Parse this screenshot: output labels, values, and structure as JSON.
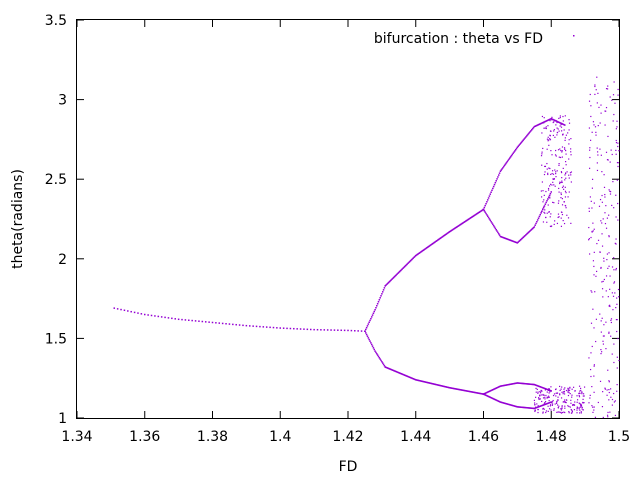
{
  "chart_data": {
    "type": "scatter",
    "title": "",
    "xlabel": "FD",
    "ylabel": "theta(radians)",
    "xlim": [
      1.34,
      1.5
    ],
    "ylim": [
      1,
      3.5
    ],
    "x_ticks": [
      1.34,
      1.36,
      1.38,
      1.4,
      1.42,
      1.44,
      1.46,
      1.48,
      1.5
    ],
    "x_tick_labels": [
      "1.34",
      "1.36",
      "1.38",
      "1.4",
      "1.42",
      "1.44",
      "1.46",
      "1.48",
      "1.5"
    ],
    "y_ticks": [
      1,
      1.5,
      2,
      2.5,
      3,
      3.5
    ],
    "y_tick_labels": [
      "1",
      "1.5",
      "2",
      "2.5",
      "3",
      "3.5"
    ],
    "grid": false,
    "legend_position": "top-right",
    "series": [
      {
        "name": "bifurcation : theta vs FD",
        "color": "#9400d3",
        "branches": [
          {
            "x": [
              1.351,
              1.36,
              1.37,
              1.38,
              1.39,
              1.4,
              1.41,
              1.42,
              1.425
            ],
            "y": [
              1.69,
              1.65,
              1.62,
              1.6,
              1.58,
              1.565,
              1.555,
              1.55,
              1.545
            ]
          },
          {
            "x": [
              1.425,
              1.428,
              1.431
            ],
            "y": [
              1.545,
              1.68,
              1.83
            ]
          },
          {
            "x": [
              1.425,
              1.428,
              1.431
            ],
            "y": [
              1.545,
              1.42,
              1.32
            ]
          },
          {
            "x": [
              1.431,
              1.44,
              1.45,
              1.46
            ],
            "y": [
              1.83,
              2.02,
              2.17,
              2.31
            ]
          },
          {
            "x": [
              1.431,
              1.44,
              1.45,
              1.46
            ],
            "y": [
              1.32,
              1.24,
              1.19,
              1.15
            ]
          },
          {
            "x": [
              1.46,
              1.465,
              1.47,
              1.475,
              1.48,
              1.484
            ],
            "y": [
              2.31,
              2.55,
              2.7,
              2.83,
              2.88,
              2.84
            ]
          },
          {
            "x": [
              1.46,
              1.465,
              1.47,
              1.475,
              1.48
            ],
            "y": [
              2.31,
              2.14,
              2.1,
              2.2,
              2.42
            ]
          },
          {
            "x": [
              1.46,
              1.465,
              1.47,
              1.475,
              1.48
            ],
            "y": [
              1.15,
              1.2,
              1.22,
              1.21,
              1.17
            ]
          },
          {
            "x": [
              1.46,
              1.465,
              1.47,
              1.475,
              1.48
            ],
            "y": [
              1.15,
              1.1,
              1.07,
              1.06,
              1.1
            ]
          }
        ],
        "chaotic_bands": [
          {
            "x": [
              1.477,
              1.486
            ],
            "y": [
              2.2,
              2.9
            ]
          },
          {
            "x": [
              1.475,
              1.49
            ],
            "y": [
              1.03,
              1.2
            ]
          },
          {
            "x": [
              1.491,
              1.5
            ],
            "y": [
              1.0,
              3.15
            ]
          }
        ]
      }
    ]
  }
}
